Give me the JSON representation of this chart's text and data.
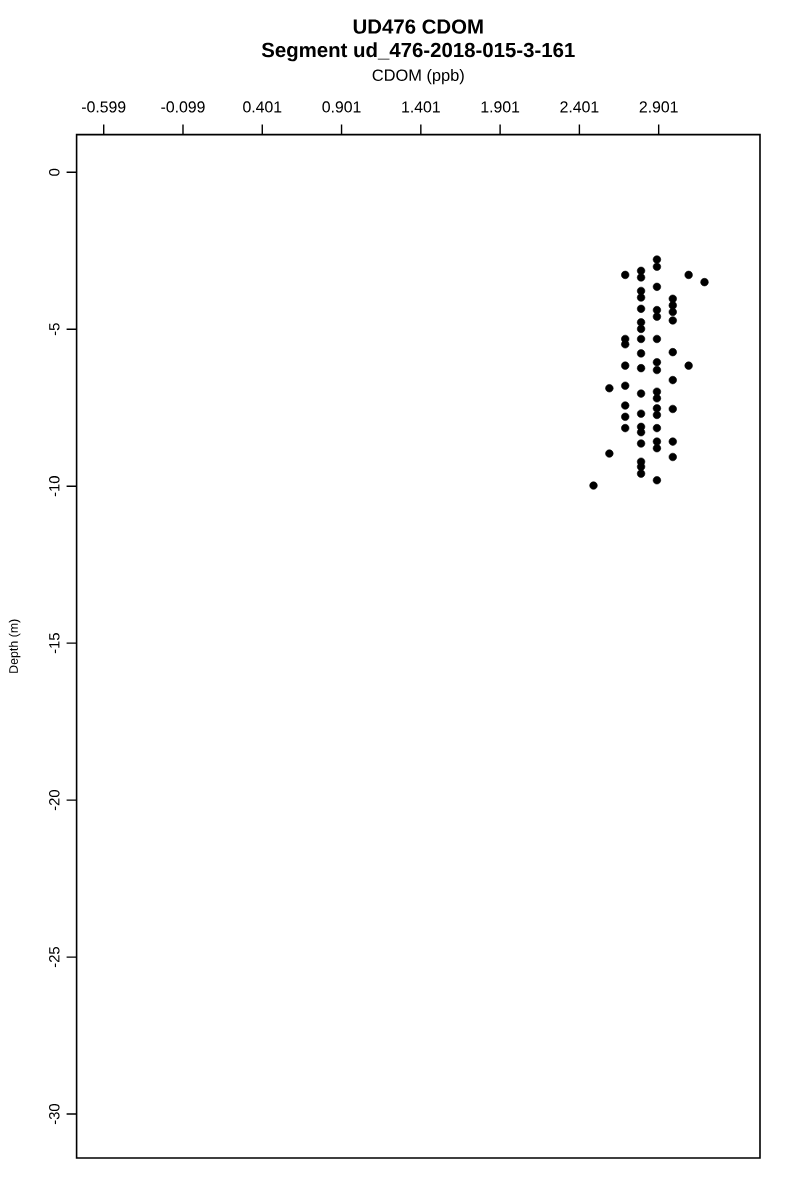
{
  "chart_data": {
    "type": "scatter",
    "title": "UD476 CDOM",
    "subtitle": "Segment ud_476-2018-015-3-161",
    "xlabel": "CDOM (ppb)",
    "ylabel": "Depth (m)",
    "x": [
      2.89,
      2.89,
      2.79,
      2.79,
      2.69,
      3.09,
      3.19,
      2.89,
      2.79,
      2.79,
      2.99,
      2.99,
      2.99,
      2.99,
      2.79,
      2.89,
      2.89,
      2.79,
      2.79,
      2.69,
      2.69,
      2.79,
      2.89,
      2.79,
      2.99,
      2.89,
      2.89,
      2.69,
      2.79,
      3.09,
      2.99,
      2.59,
      2.69,
      2.79,
      2.89,
      2.89,
      2.69,
      2.69,
      2.69,
      2.79,
      2.89,
      2.89,
      2.99,
      2.79,
      2.79,
      2.89,
      2.79,
      2.89,
      2.89,
      2.99,
      2.59,
      2.99,
      2.79,
      2.79,
      2.79,
      2.89,
      2.49
    ],
    "values": [
      -2.78,
      -3.01,
      -3.14,
      -3.35,
      -3.27,
      -3.27,
      -3.5,
      -3.65,
      -3.78,
      -3.99,
      -4.03,
      -4.24,
      -4.45,
      -4.72,
      -4.35,
      -4.39,
      -4.6,
      -4.78,
      -4.99,
      -5.31,
      -5.48,
      -5.31,
      -5.31,
      -5.77,
      -5.73,
      -6.05,
      -6.3,
      -6.16,
      -6.24,
      -6.16,
      -6.62,
      -6.88,
      -6.8,
      -7.05,
      -6.99,
      -7.2,
      -7.43,
      -7.79,
      -8.15,
      -7.69,
      -7.52,
      -7.73,
      -7.54,
      -8.11,
      -8.28,
      -8.15,
      -8.64,
      -8.58,
      -8.79,
      -8.58,
      -8.96,
      -9.07,
      -9.22,
      -9.38,
      -9.6,
      -9.81,
      -9.98
    ],
    "color": "#000000",
    "marker": "circle",
    "xlim": [
      -0.77,
      3.54
    ],
    "ylim": [
      -31.4,
      1.2
    ],
    "xticks": [
      -0.599,
      -0.099,
      0.401,
      0.901,
      1.401,
      1.901,
      2.401,
      2.901
    ],
    "yticks": [
      -30,
      -25,
      -20,
      -15,
      -10,
      -5,
      0
    ]
  }
}
